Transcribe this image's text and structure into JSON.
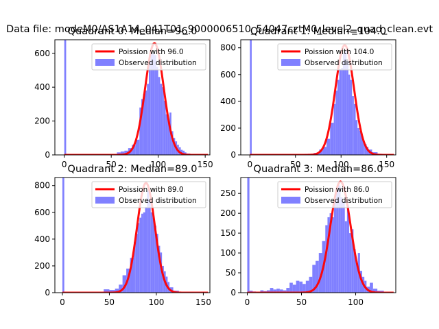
{
  "figure": {
    "suptitle": "Data file: modeM0/AS1A14_041T01_9000006510_54047cztM0_level2_quad_clean.evt"
  },
  "colors": {
    "fit_line": "#ff0000",
    "histogram": "#8080ff",
    "axes": "#000000"
  },
  "chart_data": [
    {
      "type": "histogram",
      "title": "Quadrant 0: Median=96.0",
      "median": 96.0,
      "xlim": [
        -10,
        155
      ],
      "ylim": [
        0,
        680
      ],
      "xticks": [
        0,
        50,
        100,
        150
      ],
      "yticks": [
        0,
        200,
        400,
        600
      ],
      "legend": {
        "location": "top-right",
        "entries": [
          "Poission with 96.0",
          "Observed distribution"
        ]
      },
      "fit_curve": {
        "type": "poisson",
        "mean": 96.0,
        "peak": 660
      },
      "bins": [
        {
          "x0": 0,
          "x1": 2,
          "count": 680
        },
        {
          "x0": 2,
          "x1": 56,
          "count": 3
        },
        {
          "x0": 56,
          "x1": 60,
          "count": 15
        },
        {
          "x0": 60,
          "x1": 64,
          "count": 20
        },
        {
          "x0": 64,
          "x1": 68,
          "count": 25
        },
        {
          "x0": 68,
          "x1": 72,
          "count": 40
        },
        {
          "x0": 72,
          "x1": 76,
          "count": 60
        },
        {
          "x0": 76,
          "x1": 80,
          "count": 90
        },
        {
          "x0": 80,
          "x1": 82,
          "count": 280
        },
        {
          "x0": 82,
          "x1": 84,
          "count": 330
        },
        {
          "x0": 84,
          "x1": 86,
          "count": 360
        },
        {
          "x0": 86,
          "x1": 88,
          "count": 380
        },
        {
          "x0": 88,
          "x1": 90,
          "count": 420
        },
        {
          "x0": 90,
          "x1": 92,
          "count": 560
        },
        {
          "x0": 92,
          "x1": 94,
          "count": 600
        },
        {
          "x0": 94,
          "x1": 96,
          "count": 600
        },
        {
          "x0": 96,
          "x1": 98,
          "count": 590
        },
        {
          "x0": 98,
          "x1": 100,
          "count": 520
        },
        {
          "x0": 100,
          "x1": 102,
          "count": 460
        },
        {
          "x0": 102,
          "x1": 104,
          "count": 420
        },
        {
          "x0": 104,
          "x1": 106,
          "count": 400
        },
        {
          "x0": 106,
          "x1": 108,
          "count": 320
        },
        {
          "x0": 108,
          "x1": 110,
          "count": 240
        },
        {
          "x0": 110,
          "x1": 112,
          "count": 200
        },
        {
          "x0": 112,
          "x1": 114,
          "count": 250
        },
        {
          "x0": 114,
          "x1": 116,
          "count": 140
        },
        {
          "x0": 116,
          "x1": 118,
          "count": 100
        },
        {
          "x0": 118,
          "x1": 120,
          "count": 80
        },
        {
          "x0": 120,
          "x1": 122,
          "count": 60
        },
        {
          "x0": 122,
          "x1": 124,
          "count": 45
        },
        {
          "x0": 124,
          "x1": 126,
          "count": 30
        },
        {
          "x0": 126,
          "x1": 128,
          "count": 25
        },
        {
          "x0": 128,
          "x1": 130,
          "count": 15
        },
        {
          "x0": 130,
          "x1": 134,
          "count": 8
        },
        {
          "x0": 134,
          "x1": 140,
          "count": 3
        }
      ]
    },
    {
      "type": "histogram",
      "title": "Quadrant 1: Median=104.0",
      "median": 104.0,
      "xlim": [
        -10,
        160
      ],
      "ylim": [
        0,
        860
      ],
      "xticks": [
        0,
        50,
        100,
        150
      ],
      "yticks": [
        0,
        200,
        400,
        600,
        800
      ],
      "legend": {
        "location": "top-right",
        "entries": [
          "Poission with 104.0",
          "Observed distribution"
        ]
      },
      "fit_curve": {
        "type": "poisson",
        "mean": 104.0,
        "peak": 820
      },
      "bins": [
        {
          "x0": 0,
          "x1": 2,
          "count": 860
        },
        {
          "x0": 2,
          "x1": 60,
          "count": 3
        },
        {
          "x0": 60,
          "x1": 70,
          "count": 8
        },
        {
          "x0": 70,
          "x1": 76,
          "count": 15
        },
        {
          "x0": 76,
          "x1": 80,
          "count": 40
        },
        {
          "x0": 80,
          "x1": 84,
          "count": 60
        },
        {
          "x0": 84,
          "x1": 88,
          "count": 120
        },
        {
          "x0": 88,
          "x1": 92,
          "count": 240
        },
        {
          "x0": 92,
          "x1": 94,
          "count": 380
        },
        {
          "x0": 94,
          "x1": 96,
          "count": 480
        },
        {
          "x0": 96,
          "x1": 98,
          "count": 560
        },
        {
          "x0": 98,
          "x1": 100,
          "count": 640
        },
        {
          "x0": 100,
          "x1": 102,
          "count": 650
        },
        {
          "x0": 102,
          "x1": 104,
          "count": 760
        },
        {
          "x0": 104,
          "x1": 106,
          "count": 780
        },
        {
          "x0": 106,
          "x1": 108,
          "count": 700
        },
        {
          "x0": 108,
          "x1": 110,
          "count": 600
        },
        {
          "x0": 110,
          "x1": 112,
          "count": 560
        },
        {
          "x0": 112,
          "x1": 114,
          "count": 440
        },
        {
          "x0": 114,
          "x1": 116,
          "count": 380
        },
        {
          "x0": 116,
          "x1": 118,
          "count": 260
        },
        {
          "x0": 118,
          "x1": 120,
          "count": 200
        },
        {
          "x0": 120,
          "x1": 122,
          "count": 180
        },
        {
          "x0": 122,
          "x1": 124,
          "count": 140
        },
        {
          "x0": 124,
          "x1": 126,
          "count": 100
        },
        {
          "x0": 126,
          "x1": 128,
          "count": 80
        },
        {
          "x0": 128,
          "x1": 130,
          "count": 60
        },
        {
          "x0": 130,
          "x1": 134,
          "count": 40
        },
        {
          "x0": 134,
          "x1": 140,
          "count": 20
        },
        {
          "x0": 140,
          "x1": 146,
          "count": 8
        }
      ]
    },
    {
      "type": "histogram",
      "title": "Quadrant 2: Median=89.0",
      "median": 89.0,
      "xlim": [
        -8,
        157
      ],
      "ylim": [
        0,
        860
      ],
      "xticks": [
        0,
        50,
        100,
        150
      ],
      "yticks": [
        0,
        200,
        400,
        600,
        800
      ],
      "legend": {
        "location": "top-right",
        "entries": [
          "Poission with 89.0",
          "Observed distribution"
        ]
      },
      "fit_curve": {
        "type": "poisson",
        "mean": 89.0,
        "peak": 820
      },
      "bins": [
        {
          "x0": 0,
          "x1": 2,
          "count": 860
        },
        {
          "x0": 2,
          "x1": 44,
          "count": 3
        },
        {
          "x0": 44,
          "x1": 50,
          "count": 25
        },
        {
          "x0": 50,
          "x1": 56,
          "count": 20
        },
        {
          "x0": 56,
          "x1": 60,
          "count": 30
        },
        {
          "x0": 60,
          "x1": 64,
          "count": 60
        },
        {
          "x0": 64,
          "x1": 68,
          "count": 130
        },
        {
          "x0": 68,
          "x1": 72,
          "count": 180
        },
        {
          "x0": 72,
          "x1": 76,
          "count": 260
        },
        {
          "x0": 76,
          "x1": 78,
          "count": 380
        },
        {
          "x0": 78,
          "x1": 80,
          "count": 440
        },
        {
          "x0": 80,
          "x1": 82,
          "count": 520
        },
        {
          "x0": 82,
          "x1": 84,
          "count": 560
        },
        {
          "x0": 84,
          "x1": 86,
          "count": 590
        },
        {
          "x0": 86,
          "x1": 88,
          "count": 600
        },
        {
          "x0": 88,
          "x1": 90,
          "count": 640
        },
        {
          "x0": 90,
          "x1": 92,
          "count": 760
        },
        {
          "x0": 92,
          "x1": 94,
          "count": 690
        },
        {
          "x0": 94,
          "x1": 96,
          "count": 600
        },
        {
          "x0": 96,
          "x1": 98,
          "count": 560
        },
        {
          "x0": 98,
          "x1": 100,
          "count": 500
        },
        {
          "x0": 100,
          "x1": 102,
          "count": 440
        },
        {
          "x0": 102,
          "x1": 104,
          "count": 350
        },
        {
          "x0": 104,
          "x1": 106,
          "count": 300
        },
        {
          "x0": 106,
          "x1": 108,
          "count": 200
        },
        {
          "x0": 108,
          "x1": 110,
          "count": 160
        },
        {
          "x0": 110,
          "x1": 112,
          "count": 120
        },
        {
          "x0": 112,
          "x1": 114,
          "count": 80
        },
        {
          "x0": 114,
          "x1": 118,
          "count": 40
        },
        {
          "x0": 118,
          "x1": 124,
          "count": 15
        },
        {
          "x0": 124,
          "x1": 140,
          "count": 4
        }
      ]
    },
    {
      "type": "histogram",
      "title": "Quadrant 3: Median=86.0",
      "median": 86.0,
      "xlim": [
        -6,
        137
      ],
      "ylim": [
        0,
        290
      ],
      "xticks": [
        0,
        50,
        100
      ],
      "yticks": [
        0,
        50,
        100,
        150,
        200,
        250
      ],
      "legend": {
        "location": "top-right",
        "entries": [
          "Poission with 86.0",
          "Observed distribution"
        ]
      },
      "fit_curve": {
        "type": "poisson",
        "mean": 86.0,
        "peak": 280
      },
      "bins": [
        {
          "x0": 0,
          "x1": 2,
          "count": 290
        },
        {
          "x0": 2,
          "x1": 5,
          "count": 5
        },
        {
          "x0": 5,
          "x1": 8,
          "count": 3
        },
        {
          "x0": 8,
          "x1": 12,
          "count": 2
        },
        {
          "x0": 12,
          "x1": 15,
          "count": 6
        },
        {
          "x0": 15,
          "x1": 18,
          "count": 4
        },
        {
          "x0": 18,
          "x1": 21,
          "count": 6
        },
        {
          "x0": 21,
          "x1": 24,
          "count": 12
        },
        {
          "x0": 24,
          "x1": 27,
          "count": 8
        },
        {
          "x0": 27,
          "x1": 30,
          "count": 10
        },
        {
          "x0": 30,
          "x1": 33,
          "count": 8
        },
        {
          "x0": 33,
          "x1": 36,
          "count": 6
        },
        {
          "x0": 36,
          "x1": 39,
          "count": 12
        },
        {
          "x0": 39,
          "x1": 42,
          "count": 25
        },
        {
          "x0": 42,
          "x1": 45,
          "count": 20
        },
        {
          "x0": 45,
          "x1": 48,
          "count": 30
        },
        {
          "x0": 48,
          "x1": 51,
          "count": 28
        },
        {
          "x0": 51,
          "x1": 54,
          "count": 22
        },
        {
          "x0": 54,
          "x1": 57,
          "count": 30
        },
        {
          "x0": 57,
          "x1": 60,
          "count": 40
        },
        {
          "x0": 60,
          "x1": 63,
          "count": 70
        },
        {
          "x0": 63,
          "x1": 66,
          "count": 80
        },
        {
          "x0": 66,
          "x1": 69,
          "count": 100
        },
        {
          "x0": 69,
          "x1": 72,
          "count": 130
        },
        {
          "x0": 72,
          "x1": 74,
          "count": 170
        },
        {
          "x0": 74,
          "x1": 76,
          "count": 190
        },
        {
          "x0": 76,
          "x1": 78,
          "count": 200
        },
        {
          "x0": 78,
          "x1": 80,
          "count": 190
        },
        {
          "x0": 80,
          "x1": 82,
          "count": 230
        },
        {
          "x0": 82,
          "x1": 84,
          "count": 260
        },
        {
          "x0": 84,
          "x1": 86,
          "count": 270
        },
        {
          "x0": 86,
          "x1": 88,
          "count": 240
        },
        {
          "x0": 88,
          "x1": 90,
          "count": 230
        },
        {
          "x0": 90,
          "x1": 92,
          "count": 180
        },
        {
          "x0": 92,
          "x1": 94,
          "count": 220
        },
        {
          "x0": 94,
          "x1": 96,
          "count": 150
        },
        {
          "x0": 96,
          "x1": 98,
          "count": 160
        },
        {
          "x0": 98,
          "x1": 100,
          "count": 110
        },
        {
          "x0": 100,
          "x1": 102,
          "count": 75
        },
        {
          "x0": 102,
          "x1": 104,
          "count": 100
        },
        {
          "x0": 104,
          "x1": 106,
          "count": 55
        },
        {
          "x0": 106,
          "x1": 108,
          "count": 40
        },
        {
          "x0": 108,
          "x1": 110,
          "count": 30
        },
        {
          "x0": 110,
          "x1": 113,
          "count": 15
        },
        {
          "x0": 113,
          "x1": 116,
          "count": 25
        },
        {
          "x0": 116,
          "x1": 120,
          "count": 10
        },
        {
          "x0": 120,
          "x1": 126,
          "count": 5
        }
      ]
    }
  ]
}
